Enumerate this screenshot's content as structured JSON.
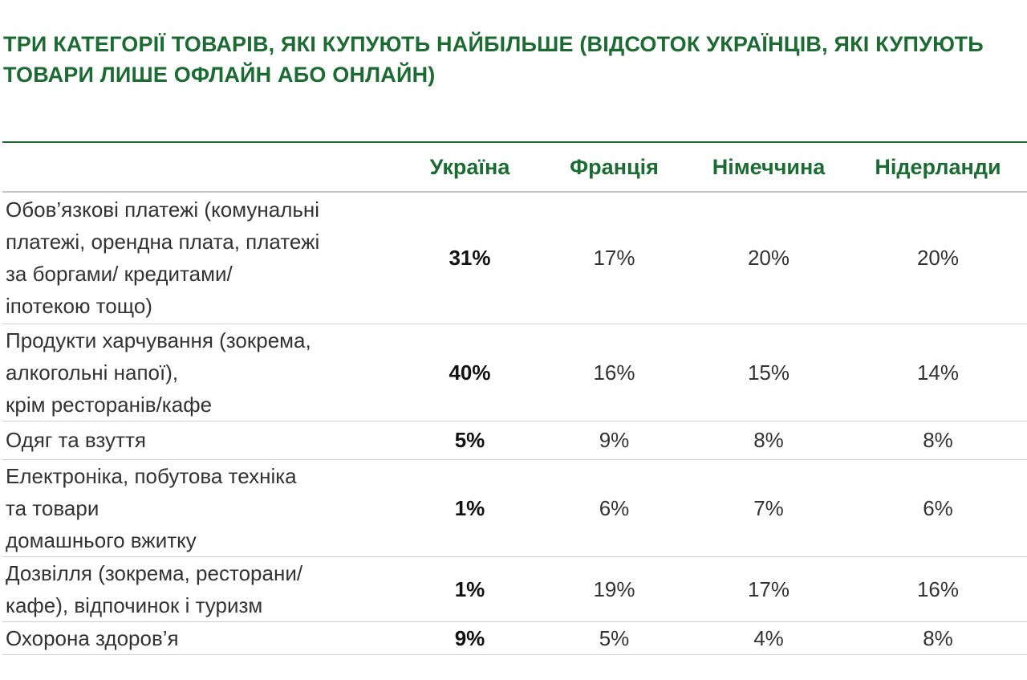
{
  "title": "ТРИ КАТЕГОРІЇ ТОВАРІВ, ЯКІ КУПУЮТЬ НАЙБІЛЬШЕ (ВІДСОТОК УКРАЇНЦІВ, ЯКІ КУПУЮТЬ ТОВАРИ ЛИШЕ ОФЛАЙН АБО ОНЛАЙН)",
  "colors": {
    "accent": "#1b6b33",
    "rule": "#cfcfcf"
  },
  "chart_data": {
    "type": "table",
    "title": "ТРИ КАТЕГОРІЇ ТОВАРІВ, ЯКІ КУПУЮТЬ НАЙБІЛЬШЕ (ВІДСОТОК УКРАЇНЦІВ, ЯКІ КУПУЮТЬ ТОВАРИ ЛИШЕ ОФЛАЙН АБО ОНЛАЙН)",
    "columns": [
      "",
      "Україна",
      "Франція",
      "Німеччина",
      "Нідерланди"
    ],
    "rows": [
      {
        "label": "Обов’язкові платежі (комунальні платежі, орендна плата, платежі за боргами/ кредитами/ іпотекою тощо)",
        "values": [
          "31%",
          "17%",
          "20%",
          "20%"
        ]
      },
      {
        "label": "Продукти харчування (зокрема, алкогольні напої), крім ресторанів/кафе",
        "values": [
          "40%",
          "16%",
          "15%",
          "14%"
        ]
      },
      {
        "label": "Одяг та взуття",
        "values": [
          "5%",
          "9%",
          "8%",
          "8%"
        ]
      },
      {
        "label": "Електроніка, побутова техніка та товари домашнього вжитку",
        "values": [
          "1%",
          "6%",
          "7%",
          "6%"
        ]
      },
      {
        "label": "Дозвілля (зокрема, ресторани/ кафе), відпочинок і туризм",
        "values": [
          "1%",
          "19%",
          "17%",
          "16%"
        ]
      },
      {
        "label": "Охорона здоров’я",
        "values": [
          "9%",
          "5%",
          "4%",
          "8%"
        ]
      }
    ]
  }
}
